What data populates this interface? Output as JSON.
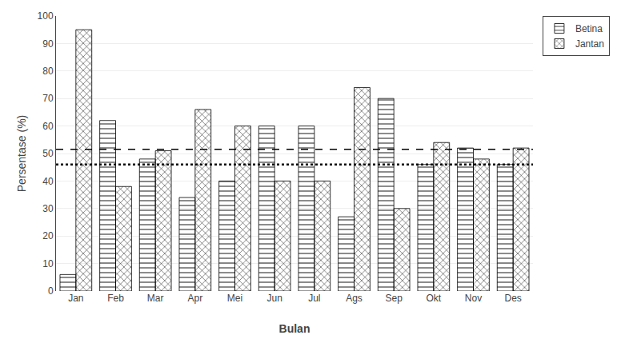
{
  "chart_data": {
    "type": "bar",
    "xlabel": "Bulan",
    "ylabel": "Persentase (%)",
    "categories": [
      "Jan",
      "Feb",
      "Mar",
      "Apr",
      "Mei",
      "Jun",
      "Jul",
      "Ags",
      "Sep",
      "Okt",
      "Nov",
      "Des"
    ],
    "series": [
      {
        "name": "Betina",
        "color": "#d0d0d0",
        "values": [
          6,
          62,
          48,
          34,
          40,
          60,
          60,
          27,
          70,
          46,
          52,
          46
        ]
      },
      {
        "name": "Jantan",
        "color": "#ffffff",
        "values": [
          95,
          38,
          51,
          66,
          60,
          40,
          40,
          74,
          30,
          54,
          48,
          52
        ]
      }
    ],
    "reference_lines": [
      {
        "value": 51.5,
        "line_style": "dashed"
      },
      {
        "value": 46,
        "line_style": "dotted"
      }
    ],
    "ylim": [
      0,
      100
    ],
    "yticks": [
      0,
      10,
      20,
      30,
      40,
      50,
      60,
      70,
      80,
      90,
      100
    ],
    "grid": true,
    "legend": "upper right"
  }
}
